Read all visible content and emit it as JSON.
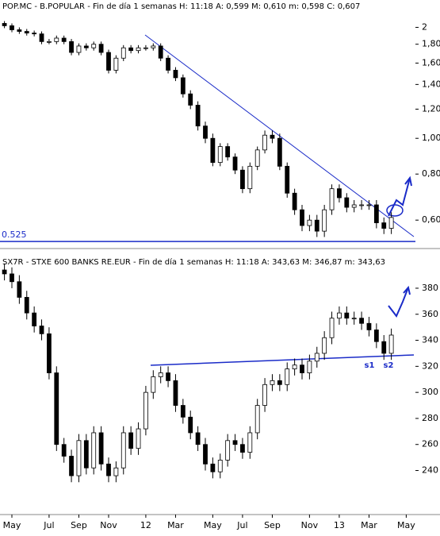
{
  "chart_data": [
    {
      "type": "candlestick",
      "title": "POP.MC - B.POPULAR - Fin de día 1 semanas  H: 11:18  A: 0,599  M: 0,610  m: 0,598  C: 0,607",
      "open": [
        2.05,
        2.02,
        1.97,
        1.95,
        1.93,
        1.92,
        1.83,
        1.83,
        1.87,
        1.83,
        1.71,
        1.78,
        1.76,
        1.8,
        1.71,
        1.53,
        1.65,
        1.76,
        1.73,
        1.76,
        1.76,
        1.78,
        1.65,
        1.53,
        1.46,
        1.32,
        1.23,
        1.08,
        1.0,
        0.86,
        0.95,
        0.89,
        0.82,
        0.73,
        0.84,
        0.93,
        1.02,
        1.0,
        0.84,
        0.71,
        0.64,
        0.58,
        0.6,
        0.56,
        0.64,
        0.73,
        0.69,
        0.65,
        0.66,
        0.66,
        0.66,
        0.59,
        0.57,
        null,
        null
      ],
      "high": [
        2.08,
        2.05,
        2.0,
        1.98,
        1.96,
        1.95,
        1.86,
        1.9,
        1.9,
        1.86,
        1.81,
        1.81,
        1.83,
        1.83,
        1.74,
        1.68,
        1.79,
        1.79,
        1.79,
        1.79,
        1.81,
        1.81,
        1.68,
        1.56,
        1.49,
        1.35,
        1.26,
        1.11,
        1.03,
        0.97,
        0.97,
        0.91,
        0.84,
        0.86,
        0.95,
        1.05,
        1.05,
        1.03,
        0.86,
        0.73,
        0.66,
        0.62,
        0.62,
        0.66,
        0.75,
        0.75,
        0.71,
        0.68,
        0.68,
        0.68,
        0.68,
        0.61,
        0.63,
        null,
        null
      ],
      "low": [
        1.99,
        1.94,
        1.92,
        1.9,
        1.89,
        1.8,
        1.8,
        1.8,
        1.8,
        1.68,
        1.68,
        1.73,
        1.73,
        1.68,
        1.5,
        1.5,
        1.62,
        1.7,
        1.7,
        1.73,
        1.73,
        1.62,
        1.5,
        1.43,
        1.29,
        1.2,
        1.05,
        0.97,
        0.84,
        0.84,
        0.87,
        0.8,
        0.71,
        0.71,
        0.82,
        0.91,
        0.97,
        0.82,
        0.69,
        0.62,
        0.56,
        0.56,
        0.54,
        0.54,
        0.62,
        0.67,
        0.63,
        0.63,
        0.64,
        0.64,
        0.57,
        0.55,
        0.55,
        null,
        null
      ],
      "close": [
        2.02,
        1.97,
        1.95,
        1.93,
        1.92,
        1.83,
        1.83,
        1.87,
        1.83,
        1.71,
        1.78,
        1.76,
        1.8,
        1.71,
        1.53,
        1.65,
        1.76,
        1.73,
        1.76,
        1.76,
        1.78,
        1.65,
        1.53,
        1.46,
        1.32,
        1.23,
        1.08,
        1.0,
        0.86,
        0.95,
        0.89,
        0.82,
        0.73,
        0.84,
        0.93,
        1.02,
        1.0,
        0.84,
        0.71,
        0.64,
        0.58,
        0.6,
        0.56,
        0.64,
        0.73,
        0.69,
        0.65,
        0.66,
        0.66,
        0.66,
        0.59,
        0.57,
        0.61,
        null,
        null
      ],
      "log_scale": true,
      "ylim": [
        0.515,
        2.17
      ],
      "yticks": [
        2,
        {
          "value": 1.8,
          "label": "1,80"
        },
        {
          "value": 1.6,
          "label": "1,60"
        },
        {
          "value": 1.4,
          "label": "1,40"
        },
        {
          "value": 1.2,
          "label": "1,20"
        },
        {
          "value": 1.0,
          "label": "1,00"
        },
        {
          "value": 0.8,
          "label": "0,80"
        },
        {
          "value": 0.6,
          "label": "0,60"
        }
      ],
      "hline": 0.525
    },
    {
      "type": "candlestick",
      "title": "SX7R - STXE 600 BANKS RE.EUR - Fin de día 1 semanas  H: 11:18  A: 343,63  M: 346,87  m: 343,63",
      "categories": [
        null,
        "May",
        null,
        null,
        null,
        null,
        "Jul",
        null,
        null,
        null,
        "Sep",
        null,
        null,
        null,
        "Nov",
        null,
        null,
        null,
        null,
        "12",
        null,
        null,
        null,
        "Mar",
        null,
        null,
        null,
        null,
        "May",
        null,
        null,
        null,
        "Jul",
        null,
        null,
        null,
        "Sep",
        null,
        null,
        null,
        null,
        "Nov",
        null,
        null,
        null,
        "13",
        null,
        null,
        null,
        "Mar",
        null,
        null,
        null,
        null,
        "May"
      ],
      "open": [
        394,
        391,
        385,
        373,
        361,
        351,
        345,
        315,
        260,
        251,
        236,
        263,
        242,
        269,
        245,
        236,
        242,
        269,
        257,
        272,
        300,
        312,
        315,
        309,
        290,
        281,
        269,
        260,
        245,
        239,
        248,
        263,
        260,
        254,
        269,
        290,
        306,
        309,
        306,
        318,
        321,
        315,
        324,
        330,
        342,
        357,
        361,
        357,
        357,
        353,
        348,
        339,
        330,
        null,
        null
      ],
      "high": [
        399,
        396,
        390,
        378,
        366,
        356,
        350,
        320,
        265,
        256,
        268,
        268,
        274,
        274,
        250,
        247,
        274,
        274,
        277,
        305,
        317,
        320,
        320,
        314,
        295,
        286,
        274,
        265,
        250,
        253,
        268,
        268,
        265,
        274,
        295,
        311,
        314,
        314,
        323,
        326,
        326,
        329,
        335,
        347,
        362,
        366,
        366,
        362,
        362,
        358,
        353,
        344,
        349,
        null,
        null
      ],
      "low": [
        386,
        380,
        368,
        356,
        346,
        340,
        310,
        255,
        246,
        231,
        231,
        237,
        237,
        240,
        231,
        231,
        237,
        252,
        252,
        267,
        295,
        307,
        304,
        285,
        276,
        264,
        255,
        240,
        234,
        234,
        243,
        255,
        249,
        249,
        264,
        285,
        301,
        301,
        301,
        313,
        310,
        310,
        319,
        325,
        337,
        352,
        352,
        352,
        348,
        343,
        334,
        325,
        325,
        null,
        null
      ],
      "close": [
        391,
        385,
        373,
        361,
        351,
        345,
        315,
        260,
        251,
        236,
        263,
        242,
        269,
        245,
        236,
        242,
        269,
        257,
        272,
        300,
        312,
        315,
        309,
        290,
        281,
        269,
        260,
        245,
        239,
        248,
        263,
        260,
        254,
        269,
        290,
        306,
        309,
        306,
        318,
        321,
        315,
        324,
        330,
        342,
        357,
        361,
        357,
        357,
        353,
        348,
        339,
        330,
        344,
        null,
        null
      ],
      "ylim": [
        208,
        394
      ],
      "yticks": [
        380,
        360,
        340,
        320,
        300,
        280,
        260,
        240
      ],
      "annotations": [
        "s1",
        "s2"
      ]
    }
  ]
}
